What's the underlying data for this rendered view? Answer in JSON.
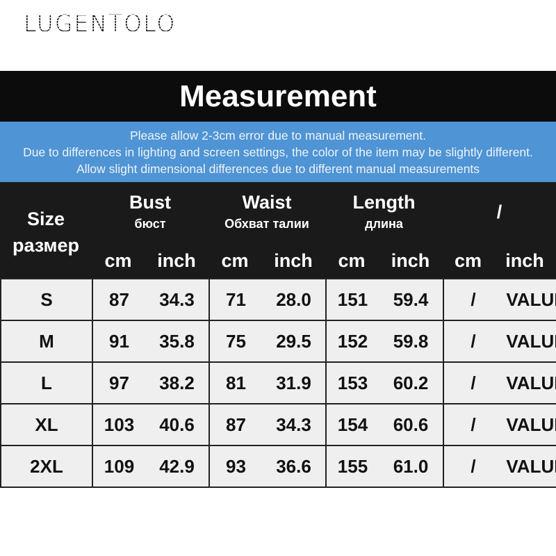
{
  "brand": "LUGENTOLO",
  "title": "Measurement",
  "notice": [
    "Please allow 2-3cm error due to manual measurement.",
    "Due to differences in lighting and screen settings, the color of the item may be slightly different.",
    "Allow slight dimensional differences due to different manual measurements"
  ],
  "header": {
    "size": "Size",
    "size_ru": "размер",
    "groups": [
      {
        "en": "Bust",
        "ru": "бюст"
      },
      {
        "en": "Waist",
        "ru": "Обхват талии"
      },
      {
        "en": "Length",
        "ru": "длина"
      },
      {
        "en": "/",
        "ru": ""
      }
    ],
    "unit_cm": "cm",
    "unit_inch": "inch"
  },
  "rows": [
    {
      "size": "S",
      "v": [
        "87",
        "34.3",
        "71",
        "28.0",
        "151",
        "59.4",
        "/",
        "VALUE"
      ]
    },
    {
      "size": "M",
      "v": [
        "91",
        "35.8",
        "75",
        "29.5",
        "152",
        "59.8",
        "/",
        "VALUE"
      ]
    },
    {
      "size": "L",
      "v": [
        "97",
        "38.2",
        "81",
        "31.9",
        "153",
        "60.2",
        "/",
        "VALUE"
      ]
    },
    {
      "size": "XL",
      "v": [
        "103",
        "40.6",
        "87",
        "34.3",
        "154",
        "60.6",
        "/",
        "VALUE"
      ]
    },
    {
      "size": "2XL",
      "v": [
        "109",
        "42.9",
        "93",
        "36.6",
        "155",
        "61.0",
        "/",
        "VALUE"
      ]
    }
  ]
}
